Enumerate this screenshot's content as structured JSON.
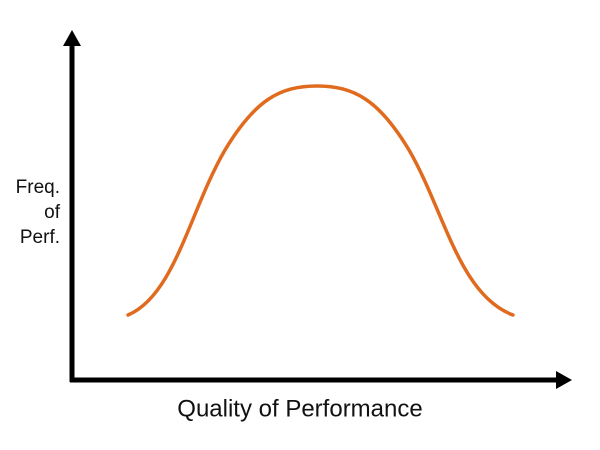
{
  "y_axis_label": [
    "Freq.",
    "of",
    "Perf."
  ],
  "x_axis_label": "Quality of Performance"
}
